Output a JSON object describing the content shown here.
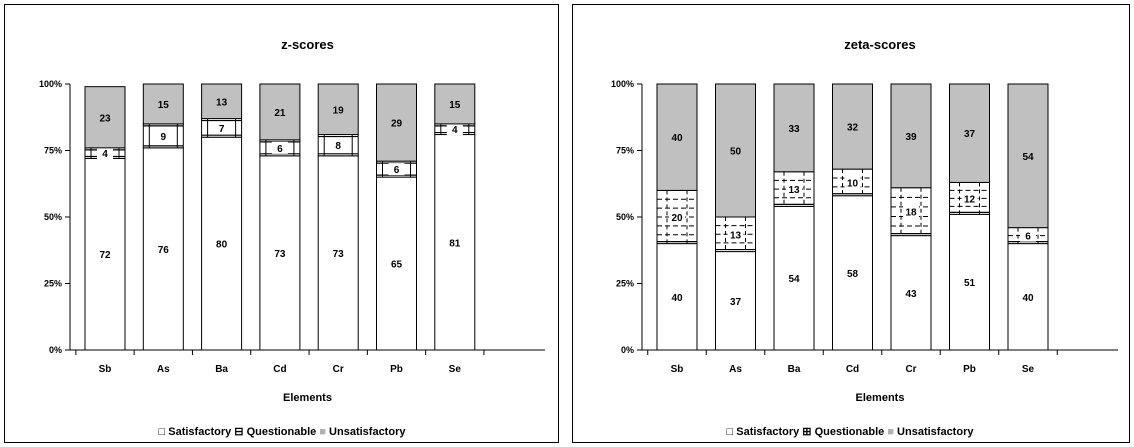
{
  "chart_data": [
    {
      "type": "bar",
      "stacked": true,
      "percent": true,
      "title": "z-scores",
      "xlabel": "Elements",
      "ylabel": "",
      "ylim": [
        0,
        100
      ],
      "yticks": [
        "0%",
        "25%",
        "50%",
        "75%",
        "100%"
      ],
      "grid": false,
      "legend_position": "bottom",
      "categories": [
        "Sb",
        "As",
        "Ba",
        "Cd",
        "Cr",
        "Pb",
        "Se"
      ],
      "series": [
        {
          "name": "Satisfactory",
          "values": [
            72,
            76,
            80,
            73,
            73,
            65,
            81
          ],
          "color": "#ffffff",
          "pattern": "none"
        },
        {
          "name": "Questionable",
          "values": [
            4,
            9,
            7,
            6,
            8,
            6,
            4
          ],
          "color": "#ffffff",
          "pattern": "horizontal-lines"
        },
        {
          "name": "Unsatisfactory",
          "values": [
            23,
            15,
            13,
            21,
            19,
            29,
            15
          ],
          "color": "#c0c0c0",
          "pattern": "none"
        }
      ]
    },
    {
      "type": "bar",
      "stacked": true,
      "percent": true,
      "title": "zeta-scores",
      "xlabel": "Elements",
      "ylabel": "",
      "ylim": [
        0,
        100
      ],
      "yticks": [
        "0%",
        "25%",
        "50%",
        "75%",
        "100%"
      ],
      "grid": false,
      "legend_position": "bottom",
      "categories": [
        "Sb",
        "As",
        "Ba",
        "Cd",
        "Cr",
        "Pb",
        "Se"
      ],
      "series": [
        {
          "name": "Satisfactory",
          "values": [
            40,
            37,
            54,
            58,
            43,
            51,
            40
          ],
          "color": "#ffffff",
          "pattern": "none"
        },
        {
          "name": "Questionable",
          "values": [
            20,
            13,
            13,
            10,
            18,
            12,
            6
          ],
          "color": "#ffffff",
          "pattern": "dashed-grid"
        },
        {
          "name": "Unsatisfactory",
          "values": [
            40,
            50,
            33,
            32,
            39,
            37,
            54
          ],
          "color": "#c0c0c0",
          "pattern": "none"
        }
      ]
    }
  ],
  "legend_symbols": {
    "satisfactory": "□",
    "questionable_z": "⊟",
    "questionable_zeta": "⊞",
    "unsatisfactory": "■"
  }
}
